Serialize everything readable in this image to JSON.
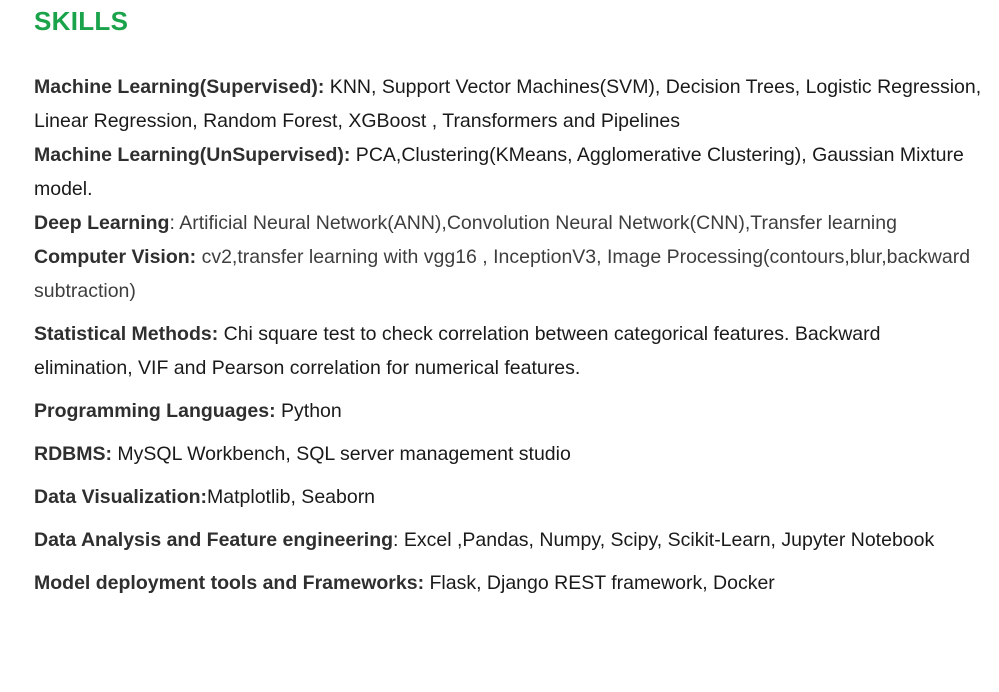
{
  "section": {
    "title": "SKILLS",
    "title_color": "#1aa34a"
  },
  "skills": [
    {
      "label": "Machine Learning(Supervised):",
      "value": " KNN, Support Vector Machines(SVM), Decision Trees, Logistic Regression, Linear Regression, Random Forest,  XGBoost , Transformers and Pipelines"
    },
    {
      "label": "Machine Learning(UnSupervised):",
      "value": " PCA,Clustering(KMeans, Agglomerative Clustering), Gaussian Mixture model."
    },
    {
      "label": "Deep Learning",
      "value": ": Artificial Neural Network(ANN),Convolution Neural Network(CNN),Transfer learning"
    },
    {
      "label": "Computer Vision:",
      "value": " cv2,transfer learning with vgg16 , InceptionV3, Image Processing(contours,blur,backward subtraction)"
    },
    {
      "label": "Statistical Methods:",
      "value": " Chi square test to check correlation between categorical features. Backward elimination, VIF and Pearson correlation for numerical features."
    },
    {
      "label": "Programming Languages:",
      "value": " Python"
    },
    {
      "label": "RDBMS:",
      "value": " MySQL Workbench, SQL server management studio"
    },
    {
      "label": "Data Visualization:",
      "value": "Matplotlib, Seaborn"
    },
    {
      "label": "Data Analysis and Feature engineering",
      "value": ": Excel ,Pandas, Numpy, Scipy, Scikit-Learn, Jupyter Notebook"
    },
    {
      "label": "Model deployment tools and Frameworks:",
      "value": " Flask, Django REST framework, Docker"
    }
  ]
}
